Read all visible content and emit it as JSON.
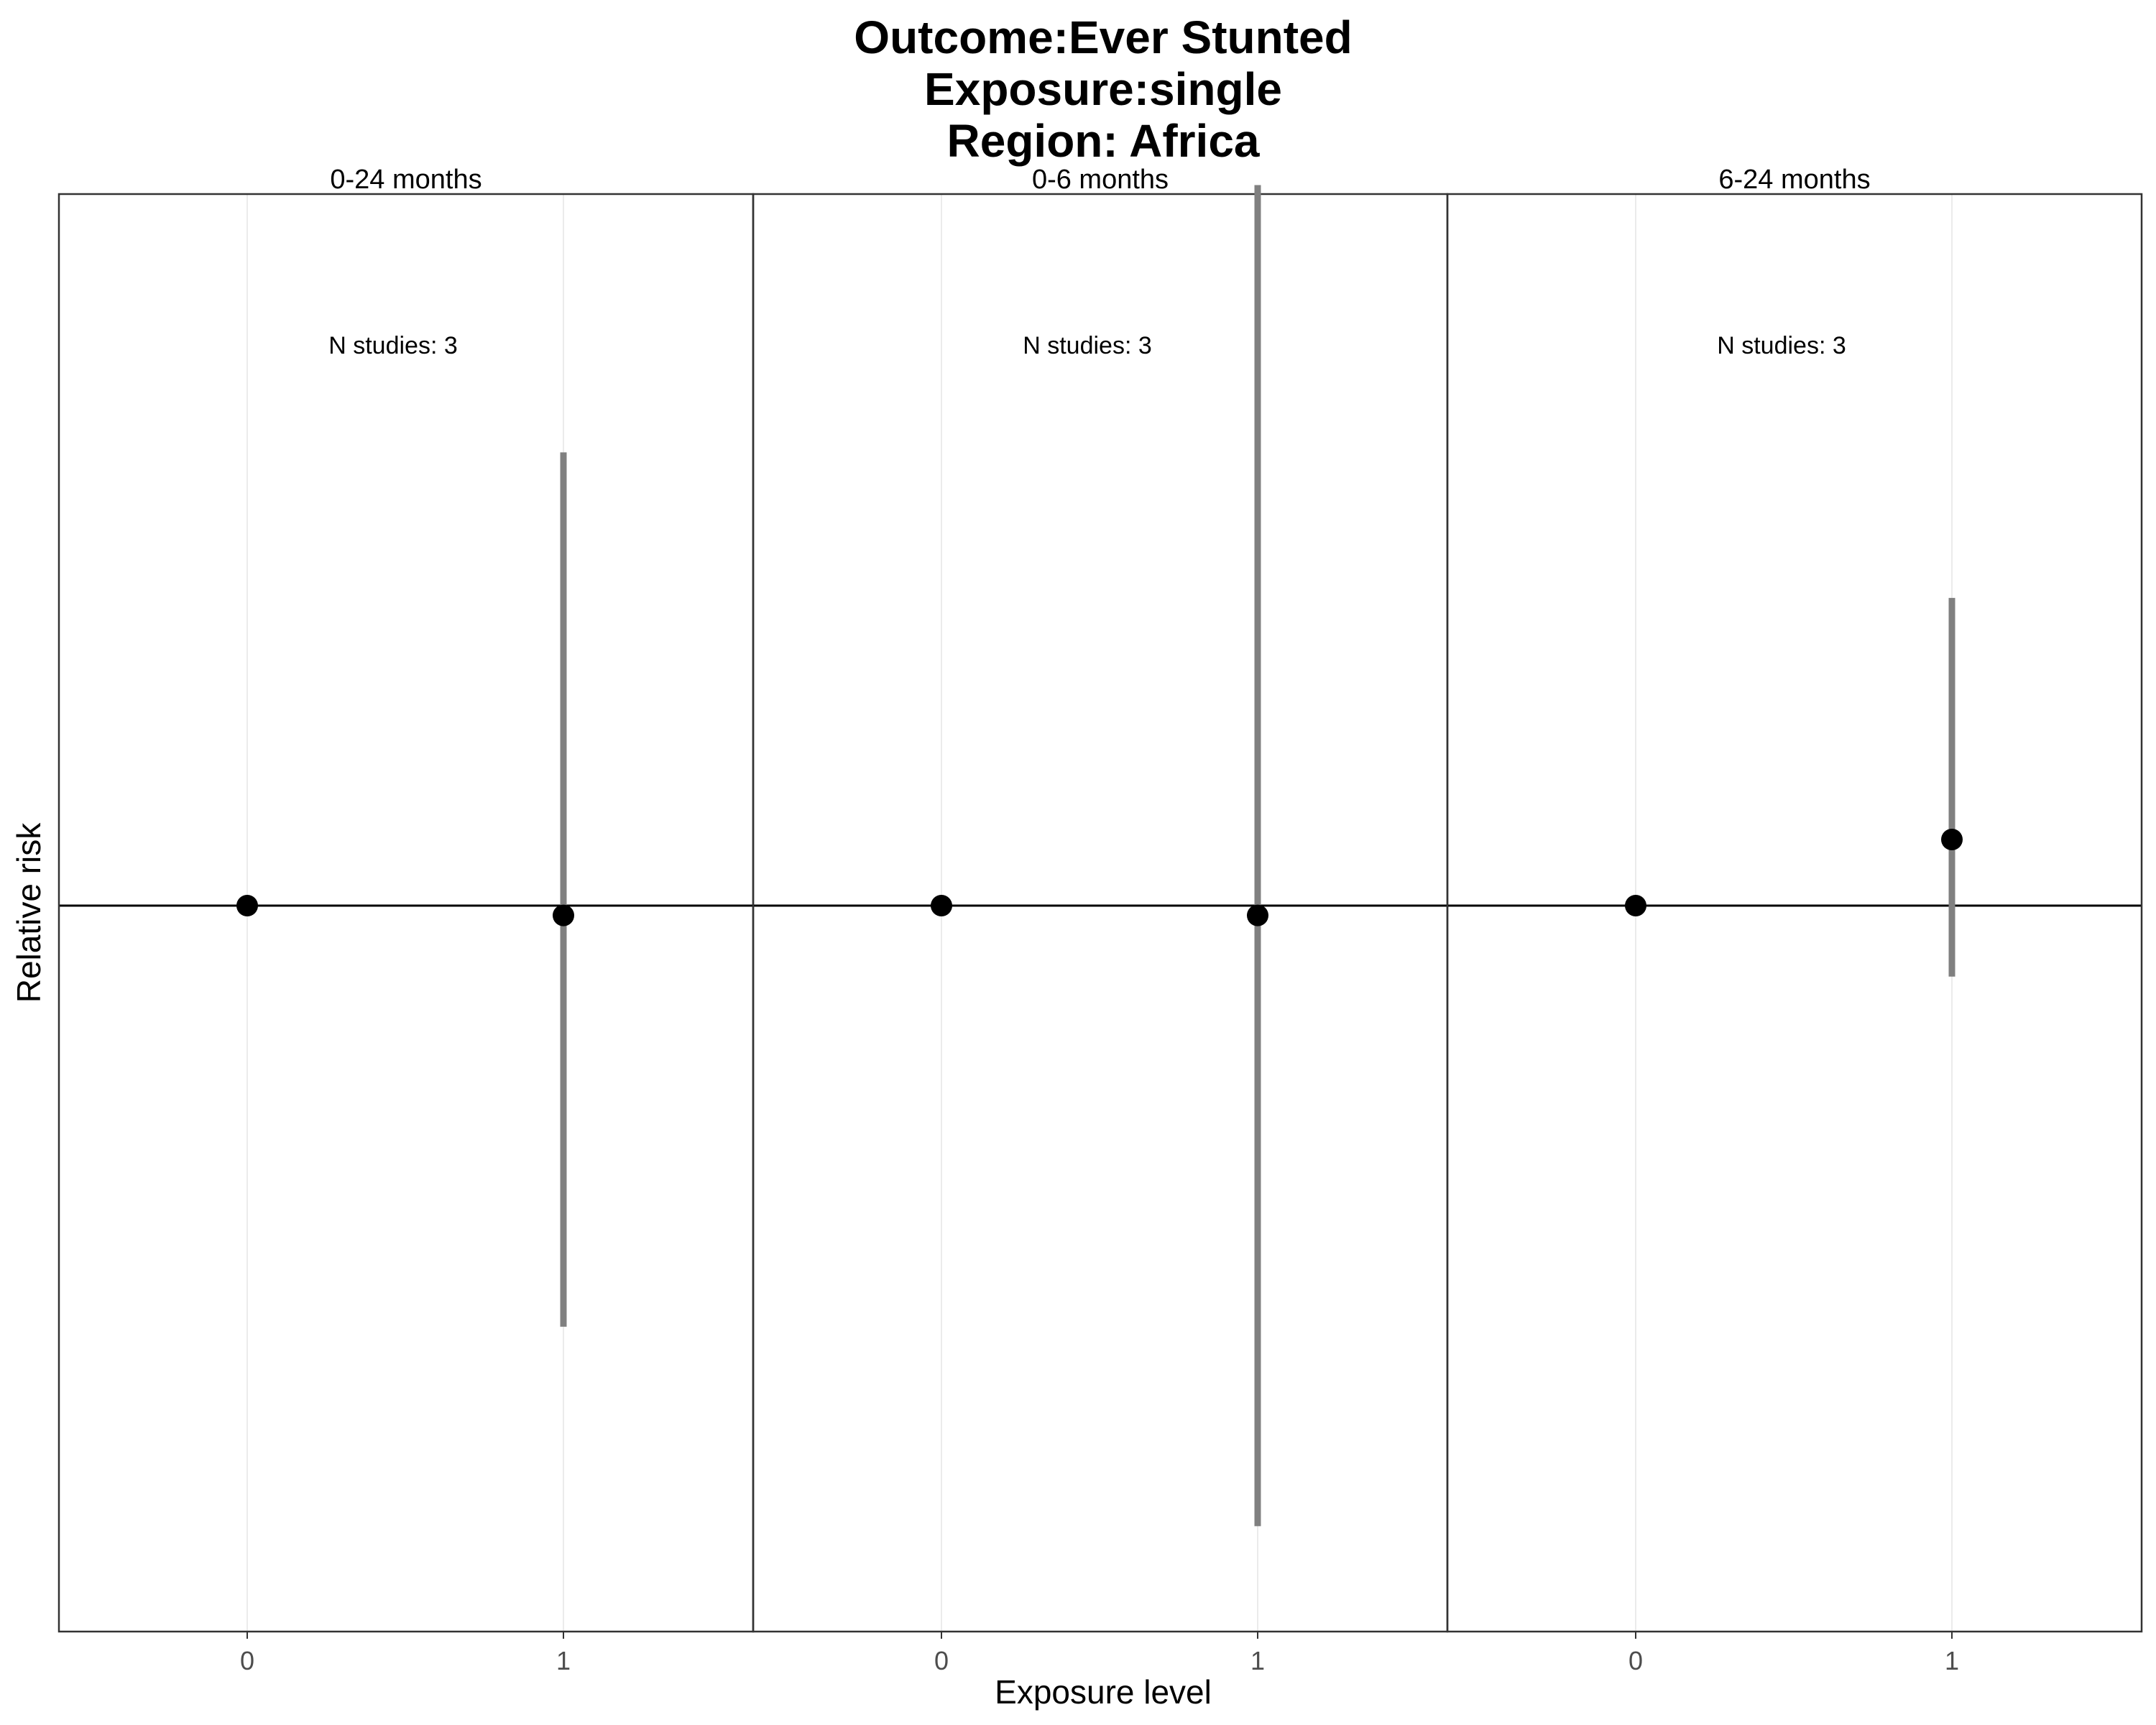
{
  "chart_data": {
    "type": "scatter",
    "title_lines": [
      "Outcome:Ever Stunted",
      "Exposure:single",
      "Region: Africa"
    ],
    "xlabel": "Exposure level",
    "ylabel": "Relative risk",
    "y_scale": "log",
    "y_tick_labels_shown": false,
    "reference_line": 1,
    "grid": "vertical",
    "x_categories": [
      "0",
      "1"
    ],
    "panels": [
      {
        "label": "0-24 months",
        "annotation": "N studies: 3",
        "points": [
          {
            "x": "0",
            "rr": 1.0
          },
          {
            "x": "1",
            "rr": 0.99,
            "ci_low": 0.65,
            "ci_high": 1.59
          }
        ]
      },
      {
        "label": "0-6 months",
        "annotation": "N studies: 3",
        "points": [
          {
            "x": "0",
            "rr": 1.0
          },
          {
            "x": "1",
            "rr": 0.99,
            "ci_low": 0.53,
            "ci_high": 2.09
          }
        ]
      },
      {
        "label": "6-24 months",
        "annotation": "N studies: 3",
        "points": [
          {
            "x": "0",
            "rr": 1.0
          },
          {
            "x": "1",
            "rr": 1.07,
            "ci_low": 0.93,
            "ci_high": 1.37
          }
        ]
      }
    ],
    "colors": {
      "point": "#000000",
      "errorbar": "#808080",
      "refline": "#000000",
      "grid": "#ebebeb",
      "border": "#333333"
    }
  }
}
